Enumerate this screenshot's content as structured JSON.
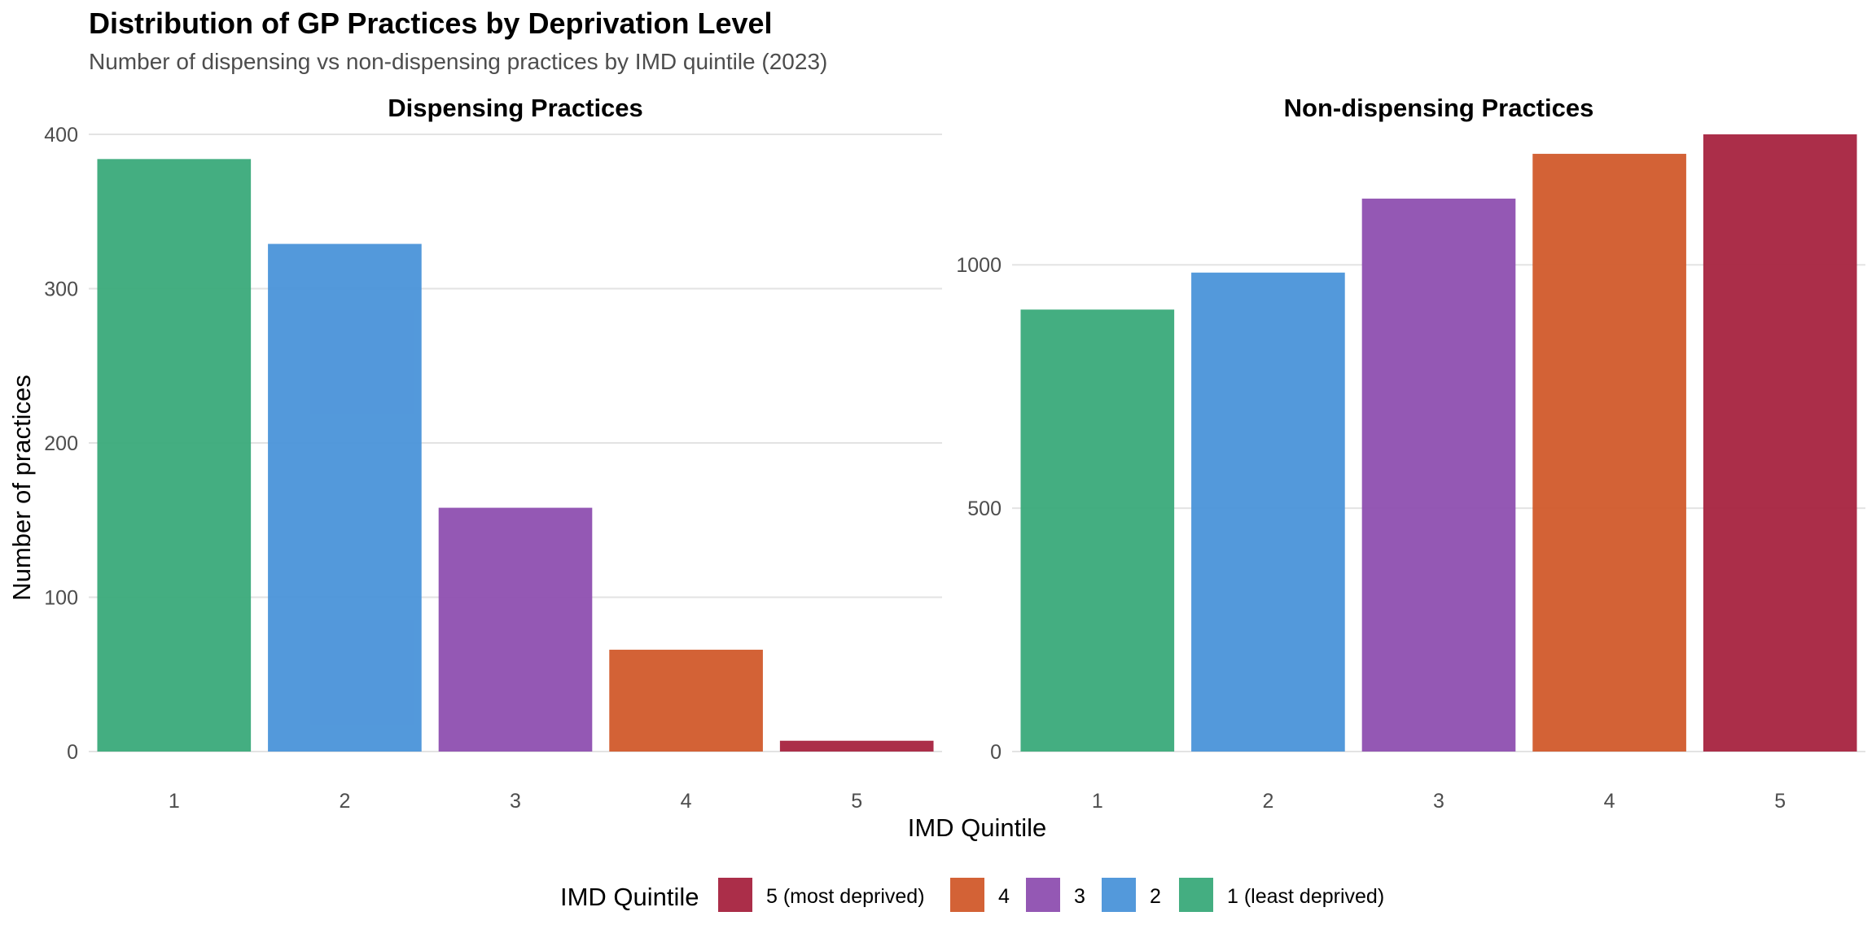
{
  "chart_data": {
    "type": "bar",
    "title": "Distribution of GP Practices by Deprivation Level",
    "subtitle": "Number of dispensing vs non-dispensing practices by IMD quintile (2023)",
    "xlabel": "IMD Quintile",
    "ylabel": "Number of practices",
    "grid": true,
    "legend_position": "bottom",
    "categories": [
      "1",
      "2",
      "3",
      "4",
      "5"
    ],
    "colors": [
      "#3aaa7a",
      "#4a93d9",
      "#8e4fb0",
      "#d15a2b",
      "#a7233f"
    ],
    "panels": [
      {
        "title": "Dispensing Practices",
        "values": [
          384,
          329,
          158,
          66,
          7
        ],
        "ylim": [
          0,
          400
        ],
        "yticks": [
          0,
          100,
          200,
          300,
          400
        ]
      },
      {
        "title": "Non-dispensing Practices",
        "values": [
          908,
          984,
          1136,
          1228,
          1268
        ],
        "ylim": [
          0,
          1268
        ],
        "yticks": [
          0,
          500,
          1000
        ]
      }
    ],
    "legend": {
      "title": "IMD Quintile",
      "items": [
        {
          "label": "5 (most deprived)",
          "color": "#a7233f"
        },
        {
          "label": "4",
          "color": "#d15a2b"
        },
        {
          "label": "3",
          "color": "#8e4fb0"
        },
        {
          "label": "2",
          "color": "#4a93d9"
        },
        {
          "label": "1 (least deprived)",
          "color": "#3aaa7a"
        }
      ]
    }
  }
}
